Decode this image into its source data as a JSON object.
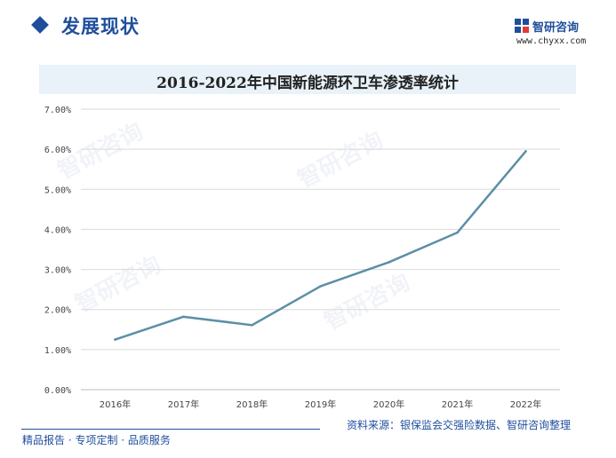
{
  "header": {
    "section_title": "发展现状",
    "brand_name": "智研咨询",
    "brand_url": "www.chyxx.com"
  },
  "footer": {
    "left_text": "精品报告 · 专项定制 · 品质服务",
    "source": "资料来源：银保监会交强险数据、智研咨询整理"
  },
  "watermark_text": "智研咨询",
  "colors": {
    "brand": "#1f4e9c",
    "line": "#5b8fa6",
    "grid": "#d9d9d9",
    "title_bar": "#e8f2f8"
  },
  "chart_data": {
    "type": "line",
    "title": "2016-2022年中国新能源环卫车渗透率统计",
    "categories": [
      "2016年",
      "2017年",
      "2018年",
      "2019年",
      "2020年",
      "2021年",
      "2022年"
    ],
    "series": [
      {
        "values": [
          1.25,
          1.82,
          1.61,
          2.58,
          3.18,
          3.92,
          5.95
        ]
      }
    ],
    "ylim": [
      0,
      7
    ],
    "yticks": [
      0,
      1,
      2,
      3,
      4,
      5,
      6,
      7
    ],
    "ytick_labels": [
      "0.00%",
      "1.00%",
      "2.00%",
      "3.00%",
      "4.00%",
      "5.00%",
      "6.00%",
      "7.00%"
    ],
    "grid": true,
    "legend": "none"
  }
}
